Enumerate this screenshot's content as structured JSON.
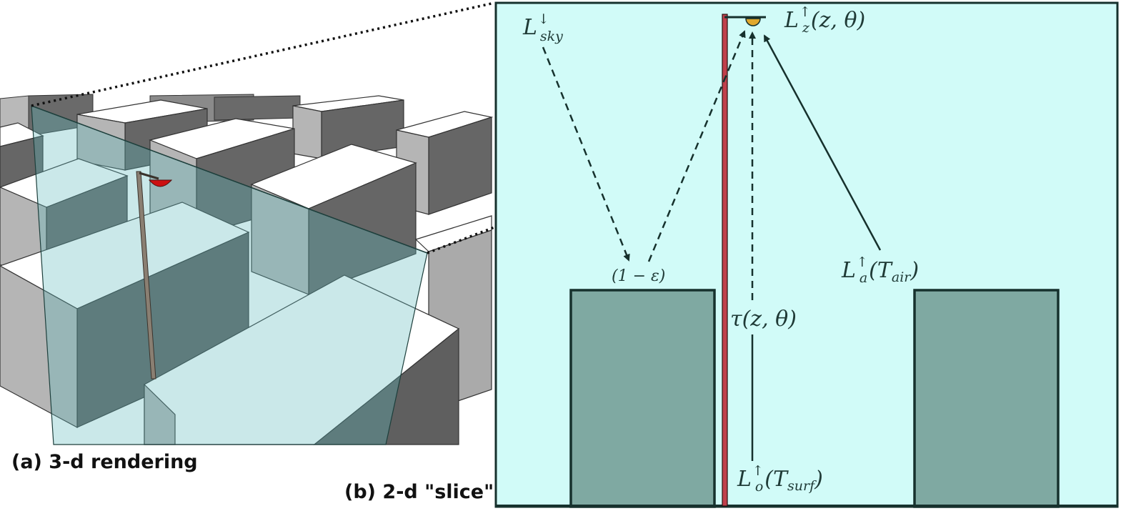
{
  "panels": {
    "a": {
      "caption": "(a) 3-d rendering"
    },
    "b": {
      "caption": "(b) 2-d \"slice\""
    }
  },
  "labels": {
    "sky": {
      "main": "L",
      "sup": "↓",
      "sub": "sky"
    },
    "lamp": {
      "main": "L",
      "sup": "↑",
      "sub": "z",
      "args": "(z, θ)"
    },
    "air": {
      "main": "L",
      "sup": "↑",
      "sub": "a",
      "args_open": "(T",
      "args_sub": "air",
      "args_close": ")"
    },
    "surf": {
      "main": "L",
      "sup": "↑",
      "sub": "o",
      "args_open": "(T",
      "args_sub": "surf",
      "args_close": ")"
    },
    "emissivity": "(1 − ε)",
    "transmittance": "τ(z, θ)"
  },
  "colors": {
    "slice_background": "#d1fbf8",
    "building_fill": "#7fa9a2",
    "building_stroke": "#16312d",
    "pole": "#c0404b",
    "lamp_head": "#e0a82e",
    "roof": "#ffffff",
    "wall_light": "#b5b5b5",
    "wall_dark": "#636363",
    "slice_plane": "#5fb9bd"
  }
}
